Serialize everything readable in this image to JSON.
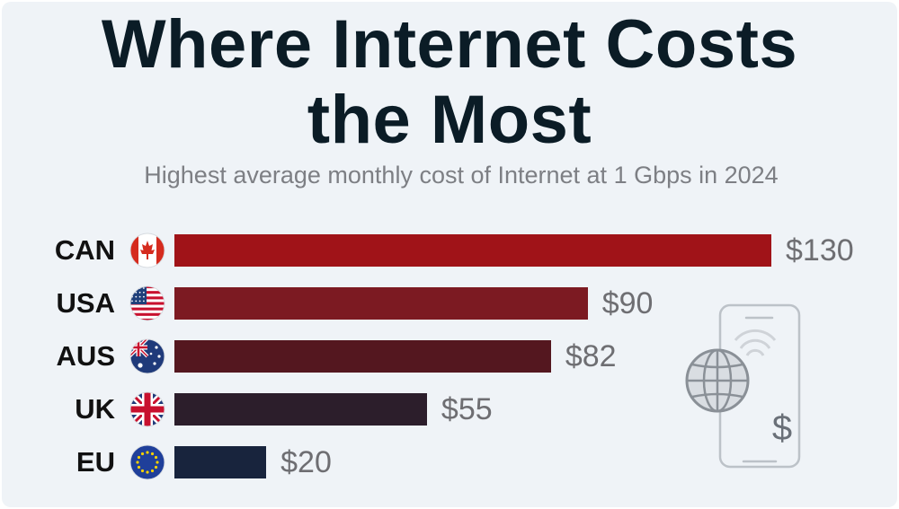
{
  "title_line1": "Where Internet Costs",
  "title_line2": "the Most",
  "subtitle": "Highest average monthly cost of Internet at 1 Gbps in 2024",
  "chart_data": {
    "type": "bar",
    "orientation": "horizontal",
    "title": "Where Internet Costs the Most",
    "subtitle": "Highest average monthly cost of Internet at 1 Gbps in 2024",
    "categories": [
      "CAN",
      "USA",
      "AUS",
      "UK",
      "EU"
    ],
    "values": [
      130,
      90,
      82,
      55,
      20
    ],
    "value_labels": [
      "$130",
      "$90",
      "$82",
      "$55",
      "$20"
    ],
    "flag_icons": [
      "canada-flag-icon",
      "usa-flag-icon",
      "australia-flag-icon",
      "uk-flag-icon",
      "eu-flag-icon"
    ],
    "colors": [
      "#a01318",
      "#7c1a22",
      "#54171f",
      "#2c1e2b",
      "#18243d"
    ],
    "xlim": [
      0,
      130
    ],
    "xlabel": "",
    "ylabel": ""
  },
  "decoration": {
    "icon": "smartphone-globe-dollar-icon",
    "symbol": "$"
  }
}
